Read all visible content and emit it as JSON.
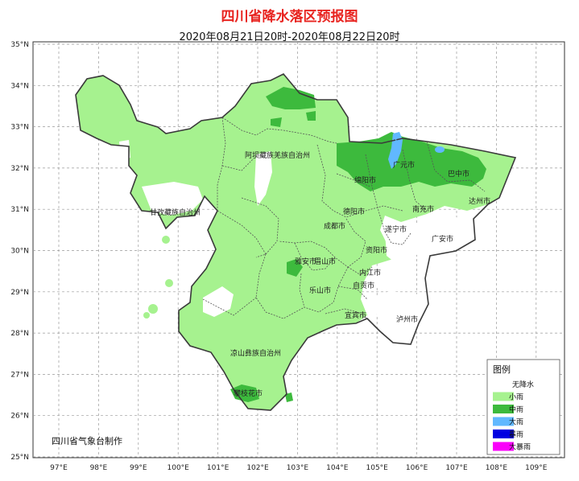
{
  "title": "四川省降水落区预报图",
  "subtitle": "2020年08月21日20时-2020年08月22日20时",
  "credit": "四川省气象台制作",
  "axes": {
    "lat_ticks": [
      "35°N",
      "34°N",
      "33°N",
      "32°N",
      "31°N",
      "30°N",
      "29°N",
      "28°N",
      "27°N",
      "26°N",
      "25°N"
    ],
    "lon_ticks": [
      "97°E",
      "98°E",
      "99°E",
      "100°E",
      "101°E",
      "102°E",
      "103°E",
      "104°E",
      "105°E",
      "106°E",
      "107°E",
      "108°E",
      "109°E"
    ],
    "grid": true
  },
  "legend": {
    "title": "图例",
    "items": [
      {
        "label": "无降水",
        "color": "#ffffff"
      },
      {
        "label": "小雨",
        "color": "#a6f28f"
      },
      {
        "label": "中雨",
        "color": "#3dba3d"
      },
      {
        "label": "大雨",
        "color": "#61b8ff"
      },
      {
        "label": "暴雨",
        "color": "#0000e1"
      },
      {
        "label": "大暴雨",
        "color": "#fa00fa"
      }
    ]
  },
  "regions": [
    "阿坝藏族羌族自治州",
    "甘孜藏族自治州",
    "凉山彝族自治州",
    "广元市",
    "巴中市",
    "绵阳市",
    "达州市",
    "南充市",
    "德阳市",
    "成都市",
    "遂宁市",
    "广安市",
    "资阳市",
    "雅安市",
    "眉山市",
    "内江市",
    "乐山市",
    "自贡市",
    "宜宾市",
    "泸州市",
    "攀枝花市"
  ]
}
